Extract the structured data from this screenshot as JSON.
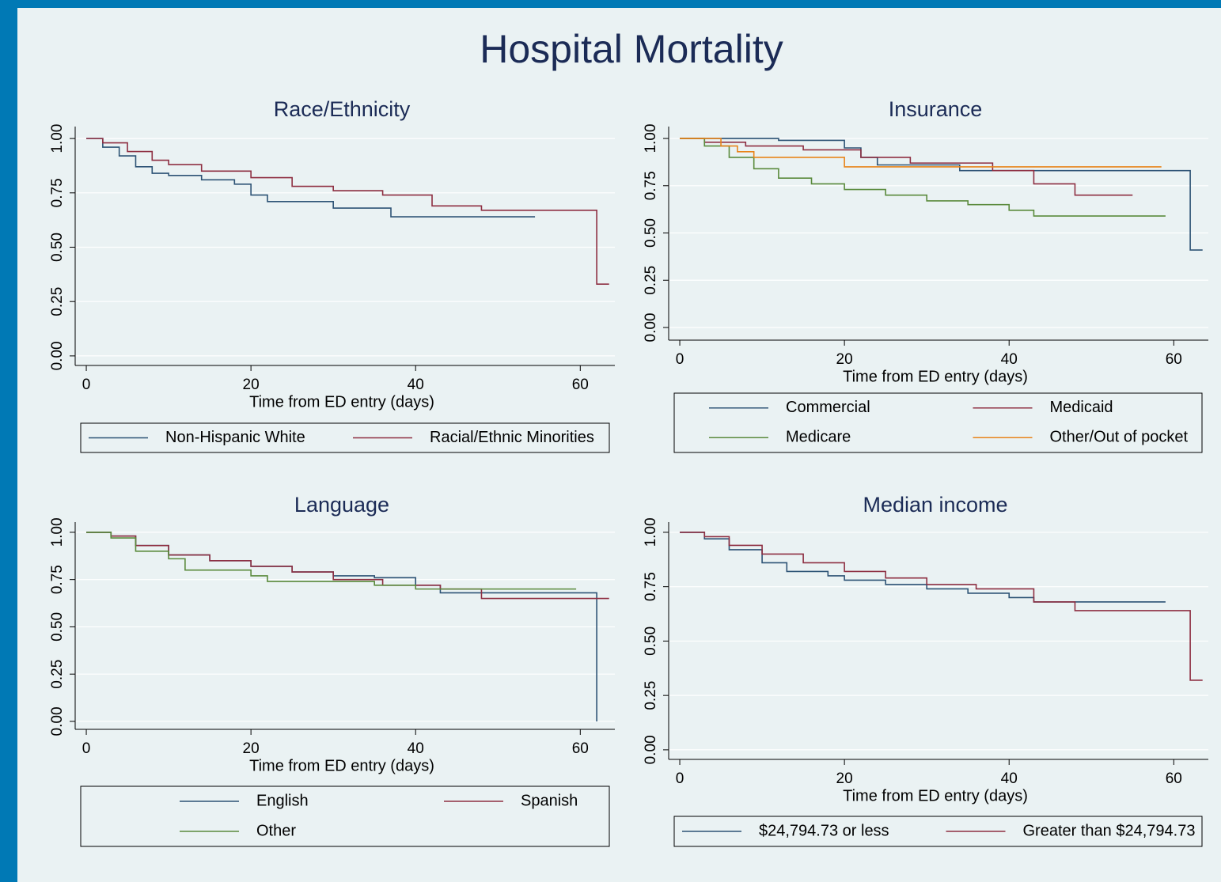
{
  "title": "Hospital Mortality",
  "chart_data": [
    {
      "type": "line",
      "step": true,
      "grid": true,
      "legend": "bottom",
      "legend_columns": 2,
      "title": "Race/Ethnicity",
      "xlabel": "Time from ED entry (days)",
      "xlim": [
        -1.35,
        64.2
      ],
      "ylim": [
        -0.044,
        1.055
      ],
      "xticks": [
        0,
        20,
        40,
        60
      ],
      "yticks": [
        {
          "value": 0,
          "label": "0.00"
        },
        {
          "value": 0.25,
          "label": "0.25"
        },
        {
          "value": 0.5,
          "label": "0.50"
        },
        {
          "value": 0.75,
          "label": "0.75"
        },
        {
          "value": 1,
          "label": "1.00"
        }
      ],
      "series": [
        {
          "name": "Non-Hispanic White",
          "color": "#2d5375",
          "x": [
            0,
            2,
            4,
            6,
            8,
            10,
            14,
            18,
            20,
            22,
            30,
            37,
            54.5
          ],
          "values": [
            1,
            0.96,
            0.92,
            0.87,
            0.84,
            0.83,
            0.81,
            0.79,
            0.74,
            0.71,
            0.68,
            0.64,
            0.64
          ]
        },
        {
          "name": "Racial/Ethnic Minorities",
          "color": "#8e2f42",
          "x": [
            0,
            2,
            5,
            8,
            10,
            14,
            20,
            25,
            30,
            36,
            42,
            48,
            62,
            63.5
          ],
          "values": [
            1,
            0.98,
            0.94,
            0.9,
            0.88,
            0.85,
            0.82,
            0.78,
            0.76,
            0.74,
            0.69,
            0.67,
            0.33,
            0.33
          ]
        }
      ]
    },
    {
      "type": "line",
      "step": true,
      "grid": true,
      "legend": "bottom",
      "legend_columns": 2,
      "title": "Insurance",
      "xlabel": "Time from ED entry (days)",
      "xlim": [
        -1.35,
        64.2
      ],
      "ylim": [
        -0.067,
        1.063
      ],
      "xticks": [
        0,
        20,
        40,
        60
      ],
      "yticks": [
        {
          "value": 0,
          "label": "0.00"
        },
        {
          "value": 0.25,
          "label": "0.25"
        },
        {
          "value": 0.5,
          "label": "0.50"
        },
        {
          "value": 0.75,
          "label": "0.75"
        },
        {
          "value": 1,
          "label": "1.00"
        }
      ],
      "series": [
        {
          "name": "Commercial",
          "color": "#2d5375",
          "x": [
            0,
            12,
            20,
            22,
            24,
            34,
            62,
            63.5
          ],
          "values": [
            1,
            0.99,
            0.95,
            0.9,
            0.86,
            0.83,
            0.41,
            0.41
          ]
        },
        {
          "name": "Medicaid",
          "color": "#8e2f42",
          "x": [
            0,
            3,
            8,
            15,
            22,
            28,
            38,
            43,
            48,
            55
          ],
          "values": [
            1,
            0.98,
            0.96,
            0.94,
            0.9,
            0.87,
            0.83,
            0.76,
            0.7,
            0.7
          ]
        },
        {
          "name": "Medicare",
          "color": "#5a8a3c",
          "x": [
            0,
            3,
            6,
            9,
            12,
            16,
            20,
            25,
            30,
            35,
            40,
            43,
            59
          ],
          "values": [
            1,
            0.96,
            0.9,
            0.84,
            0.79,
            0.76,
            0.73,
            0.7,
            0.67,
            0.65,
            0.62,
            0.59,
            0.59
          ]
        },
        {
          "name": "Other/Out of pocket",
          "color": "#e8841a",
          "x": [
            0,
            5,
            7,
            9,
            20,
            58.5
          ],
          "values": [
            1,
            0.96,
            0.93,
            0.9,
            0.85,
            0.85
          ]
        }
      ]
    },
    {
      "type": "line",
      "step": true,
      "grid": true,
      "legend": "bottom",
      "legend_columns": 2,
      "title": "Language",
      "xlabel": "Time from ED entry (days)",
      "xlim": [
        -1.35,
        64.2
      ],
      "ylim": [
        -0.042,
        1.054
      ],
      "xticks": [
        0,
        20,
        40,
        60
      ],
      "yticks": [
        {
          "value": 0,
          "label": "0.00"
        },
        {
          "value": 0.25,
          "label": "0.25"
        },
        {
          "value": 0.5,
          "label": "0.50"
        },
        {
          "value": 0.75,
          "label": "0.75"
        },
        {
          "value": 1,
          "label": "1.00"
        }
      ],
      "series": [
        {
          "name": "English",
          "color": "#2d5375",
          "x": [
            0,
            3,
            6,
            10,
            15,
            20,
            25,
            30,
            35,
            40,
            43,
            62
          ],
          "values": [
            1,
            0.98,
            0.93,
            0.88,
            0.85,
            0.82,
            0.79,
            0.77,
            0.76,
            0.72,
            0.68,
            0
          ]
        },
        {
          "name": "Spanish",
          "color": "#8e2f42",
          "x": [
            0,
            3,
            6,
            10,
            15,
            20,
            25,
            30,
            36,
            43,
            48,
            63.5
          ],
          "values": [
            1,
            0.98,
            0.93,
            0.88,
            0.85,
            0.82,
            0.79,
            0.75,
            0.72,
            0.7,
            0.65,
            0.65
          ]
        },
        {
          "name": "Other",
          "color": "#5a8a3c",
          "x": [
            0,
            3,
            6,
            10,
            12,
            20,
            22,
            30,
            35,
            40,
            59.5
          ],
          "values": [
            1,
            0.97,
            0.9,
            0.86,
            0.8,
            0.77,
            0.74,
            0.74,
            0.72,
            0.7,
            0.7
          ]
        }
      ]
    },
    {
      "type": "line",
      "step": true,
      "grid": true,
      "legend": "bottom",
      "legend_columns": 2,
      "title": "Median income",
      "xlabel": "Time from ED entry (days)",
      "xlim": [
        -1.35,
        64.2
      ],
      "ylim": [
        -0.044,
        1.047
      ],
      "xticks": [
        0,
        20,
        40,
        60
      ],
      "yticks": [
        {
          "value": 0,
          "label": "0.00"
        },
        {
          "value": 0.25,
          "label": "0.25"
        },
        {
          "value": 0.5,
          "label": "0.50"
        },
        {
          "value": 0.75,
          "label": "0.75"
        },
        {
          "value": 1,
          "label": "1.00"
        }
      ],
      "series": [
        {
          "name": "$24,794.73 or less",
          "color": "#2d5375",
          "x": [
            0,
            3,
            6,
            10,
            13,
            18,
            20,
            25,
            30,
            35,
            40,
            43,
            59
          ],
          "values": [
            1,
            0.97,
            0.92,
            0.86,
            0.82,
            0.8,
            0.78,
            0.76,
            0.74,
            0.72,
            0.7,
            0.68,
            0.68
          ]
        },
        {
          "name": "Greater than $24,794.73",
          "color": "#8e2f42",
          "x": [
            0,
            3,
            6,
            10,
            15,
            20,
            25,
            30,
            36,
            43,
            48,
            62,
            63.5
          ],
          "values": [
            1,
            0.98,
            0.94,
            0.9,
            0.86,
            0.82,
            0.79,
            0.76,
            0.74,
            0.68,
            0.64,
            0.32,
            0.32
          ]
        }
      ]
    }
  ]
}
